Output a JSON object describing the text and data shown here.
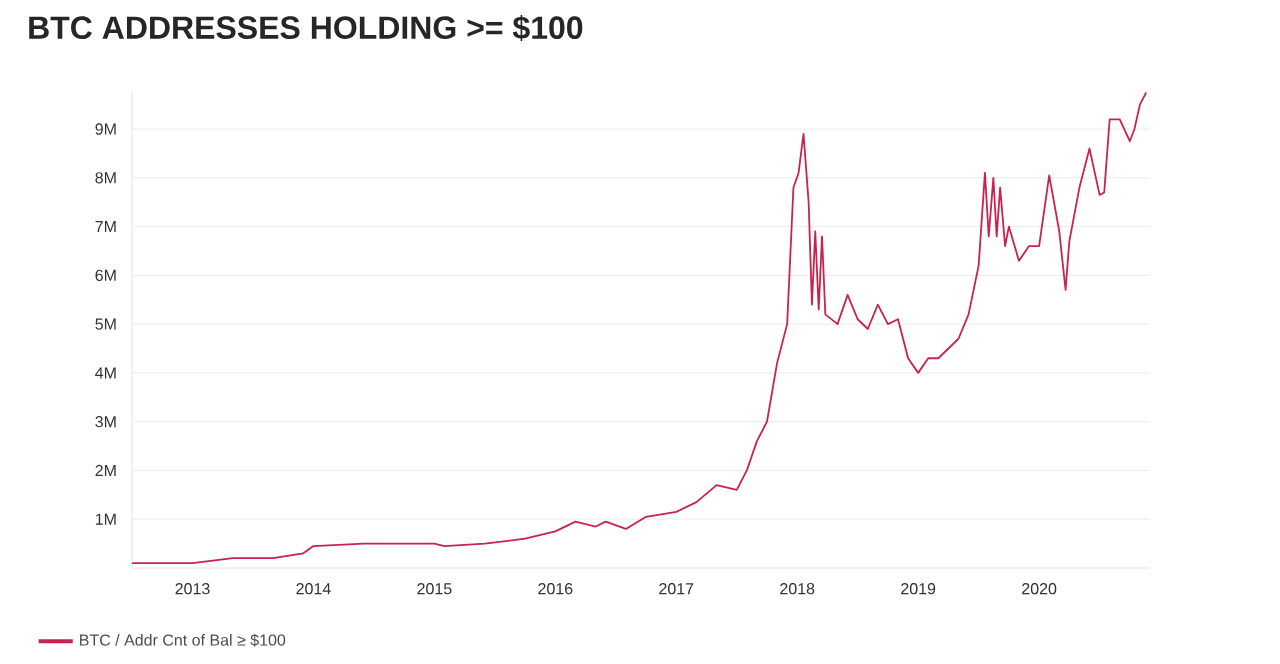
{
  "chart_data": {
    "type": "line",
    "title": "BTC ADDRESSES HOLDING >= $100",
    "xlim": [
      "2012-07",
      "2020-12"
    ],
    "xticks": [
      "2013",
      "2014",
      "2015",
      "2016",
      "2017",
      "2018",
      "2019",
      "2020"
    ],
    "ylim": [
      0,
      9800000
    ],
    "yticks": [
      {
        "value": 1000000,
        "label": "1M"
      },
      {
        "value": 2000000,
        "label": "2M"
      },
      {
        "value": 3000000,
        "label": "3M"
      },
      {
        "value": 4000000,
        "label": "4M"
      },
      {
        "value": 5000000,
        "label": "5M"
      },
      {
        "value": 6000000,
        "label": "6M"
      },
      {
        "value": 7000000,
        "label": "7M"
      },
      {
        "value": 8000000,
        "label": "8M"
      },
      {
        "value": 9000000,
        "label": "9M"
      }
    ],
    "grid": "y",
    "legend": "bottom left",
    "marker": "none",
    "line_style": "solid",
    "series": [
      {
        "name": "BTC / Addr Cnt of Bal ≥ $100",
        "color": "#c8234f",
        "x": [
          "2012-07",
          "2013-01",
          "2013-05",
          "2013-09",
          "2013-12",
          "2014-01",
          "2014-06",
          "2015-01",
          "2015-02",
          "2015-06",
          "2015-10",
          "2016-01",
          "2016-03",
          "2016-05",
          "2016-06",
          "2016-08",
          "2016-10",
          "2017-01",
          "2017-03",
          "2017-05",
          "2017-07",
          "2017-08",
          "2017-09",
          "2017-10",
          "2017-11",
          "2017-12",
          "2017-12-20",
          "2018-01-05",
          "2018-01-20",
          "2018-02-05",
          "2018-02-15",
          "2018-02-25",
          "2018-03-05",
          "2018-03-15",
          "2018-03-25",
          "2018-05",
          "2018-06",
          "2018-07",
          "2018-08",
          "2018-09",
          "2018-10",
          "2018-11",
          "2018-12",
          "2019-01",
          "2019-02",
          "2019-03",
          "2019-04",
          "2019-05",
          "2019-06",
          "2019-07",
          "2019-07-20",
          "2019-08",
          "2019-08-15",
          "2019-08-25",
          "2019-09-05",
          "2019-09-20",
          "2019-10",
          "2019-11",
          "2019-12",
          "2020-01",
          "2020-02",
          "2020-03",
          "2020-03-20",
          "2020-04",
          "2020-05",
          "2020-06",
          "2020-07",
          "2020-07-15",
          "2020-08",
          "2020-09",
          "2020-10",
          "2020-10-15",
          "2020-11",
          "2020-11-20"
        ],
        "values": [
          100000,
          100000,
          200000,
          200000,
          300000,
          450000,
          500000,
          500000,
          450000,
          500000,
          600000,
          750000,
          950000,
          850000,
          950000,
          800000,
          1050000,
          1150000,
          1350000,
          1700000,
          1600000,
          2000000,
          2600000,
          3000000,
          4200000,
          5000000,
          7800000,
          8100000,
          8900000,
          7500000,
          5400000,
          6900000,
          5300000,
          6800000,
          5200000,
          5000000,
          5600000,
          5100000,
          4900000,
          5400000,
          5000000,
          5100000,
          4300000,
          4000000,
          4300000,
          4300000,
          4500000,
          4700000,
          5200000,
          6200000,
          8100000,
          6800000,
          8000000,
          6800000,
          7800000,
          6600000,
          7000000,
          6300000,
          6600000,
          6600000,
          8050000,
          6900000,
          5700000,
          6700000,
          7800000,
          8600000,
          7650000,
          7700000,
          9200000,
          9200000,
          8750000,
          9000000,
          9500000,
          9750000
        ]
      }
    ]
  }
}
